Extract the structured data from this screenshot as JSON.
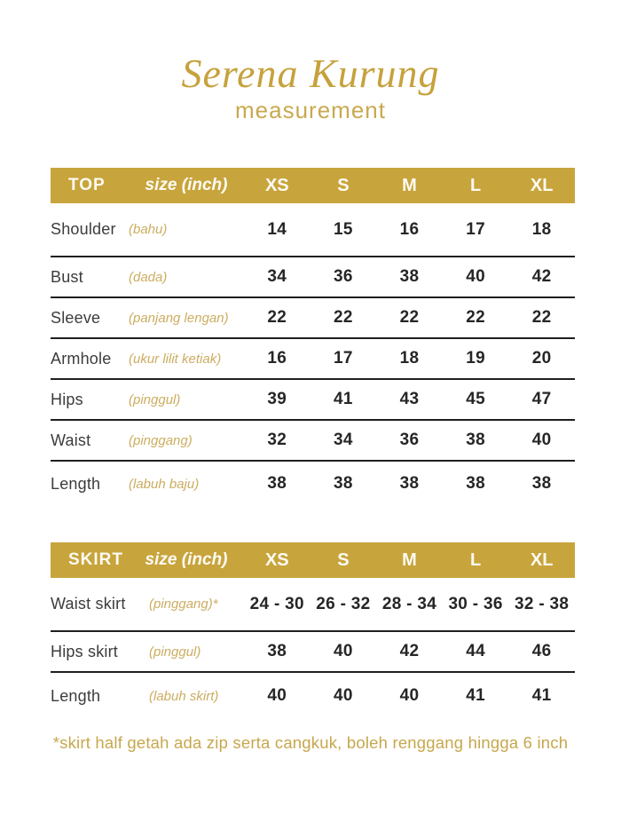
{
  "page": {
    "title": "Serena Kurung",
    "subtitle": "measurement",
    "footnote": "*skirt half getah ada zip serta cangkuk, boleh renggang hingga 6 inch"
  },
  "colors": {
    "gold_bar": "#C8A43C",
    "gold_title": "#C6A23C",
    "gold_malay": "#CCAD60",
    "line": "#1F1F1F",
    "label_text": "#3C3C3C",
    "value_text": "#262626"
  },
  "sizes_header": [
    "XS",
    "S",
    "M",
    "L",
    "XL"
  ],
  "tables": [
    {
      "name": "TOP",
      "size_label": "size (inch)",
      "rows": [
        {
          "label": "Shoulder",
          "malay": "(bahu)",
          "values": [
            "14",
            "15",
            "16",
            "17",
            "18"
          ]
        },
        {
          "label": "Bust",
          "malay": "(dada)",
          "values": [
            "34",
            "36",
            "38",
            "40",
            "42"
          ]
        },
        {
          "label": "Sleeve",
          "malay": "(panjang lengan)",
          "values": [
            "22",
            "22",
            "22",
            "22",
            "22"
          ]
        },
        {
          "label": "Armhole",
          "malay": "(ukur lilit ketiak)",
          "values": [
            "16",
            "17",
            "18",
            "19",
            "20"
          ]
        },
        {
          "label": "Hips",
          "malay": "(pinggul)",
          "values": [
            "39",
            "41",
            "43",
            "45",
            "47"
          ]
        },
        {
          "label": "Waist",
          "malay": "(pinggang)",
          "values": [
            "32",
            "34",
            "36",
            "38",
            "40"
          ]
        },
        {
          "label": "Length",
          "malay": "(labuh baju)",
          "values": [
            "38",
            "38",
            "38",
            "38",
            "38"
          ]
        }
      ]
    },
    {
      "name": "SKIRT",
      "size_label": "size (inch)",
      "rows": [
        {
          "label": "Waist skirt",
          "malay": "(pinggang)*",
          "values": [
            "24 - 30",
            "26 - 32",
            "28 - 34",
            "30 - 36",
            "32 - 38"
          ]
        },
        {
          "label": "Hips skirt",
          "malay": "(pinggul)",
          "values": [
            "38",
            "40",
            "42",
            "44",
            "46"
          ]
        },
        {
          "label": "Length",
          "malay": "(labuh skirt)",
          "values": [
            "40",
            "40",
            "40",
            "41",
            "41"
          ]
        }
      ]
    }
  ]
}
